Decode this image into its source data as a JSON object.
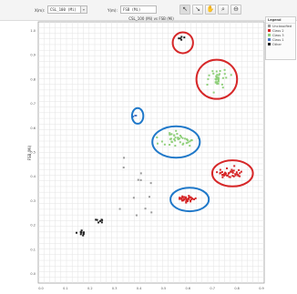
{
  "toolbar": {
    "x_label": "X(m):",
    "x_value": "CSL_100 (Mi)",
    "y_label": "Y(m):",
    "y_value": "FSB (Mi)",
    "tools": [
      {
        "name": "select-tool",
        "glyph": "↖"
      },
      {
        "name": "lasso-tool",
        "glyph": "↘"
      },
      {
        "name": "pan-tool",
        "glyph": "✋"
      },
      {
        "name": "zoom-in-tool",
        "glyph": "⌕"
      },
      {
        "name": "zoom-out-tool",
        "glyph": "⊖"
      }
    ]
  },
  "legend": {
    "title": "Legend",
    "items": [
      {
        "label": "Unclassified",
        "color": "#9a9a9a"
      },
      {
        "label": "Class 2",
        "color": "#d62728"
      },
      {
        "label": "Class 3",
        "color": "#8fcf7a"
      },
      {
        "label": "Class 1",
        "color": "#4e79c7"
      },
      {
        "label": "Other",
        "color": "#222222"
      }
    ]
  },
  "chart_data": {
    "type": "scatter",
    "title": "CSL_100 (Mi) vs FSB (Mi)",
    "xlabel": "",
    "ylabel": "FSB (Mi)",
    "xlim": [
      0,
      1
    ],
    "ylim": [
      0,
      1
    ],
    "x_ticks": [
      "0.0",
      "0.1",
      "0.2",
      "0.3",
      "0.4",
      "0.5",
      "0.6",
      "0.7",
      "0.8",
      "0.9"
    ],
    "y_ticks": [
      "0.0",
      "0.1",
      "0.2",
      "0.3",
      "0.4",
      "0.5",
      "0.6",
      "0.7",
      "0.8",
      "0.9",
      "1.0"
    ],
    "grid": true,
    "legend_position": "right",
    "clusters": [
      {
        "series": "Class 2",
        "color": "#d62728",
        "center": [
          0.85,
          0.42
        ],
        "spread": [
          0.05,
          0.018
        ],
        "count": 42
      },
      {
        "series": "Class 2",
        "color": "#d62728",
        "center": [
          0.66,
          0.32
        ],
        "spread": [
          0.055,
          0.013
        ],
        "count": 38
      },
      {
        "series": "Class 3",
        "color": "#8fcf7a",
        "center": [
          0.79,
          0.78
        ],
        "spread": [
          0.045,
          0.035
        ],
        "count": 34
      },
      {
        "series": "Class 3",
        "color": "#8fcf7a",
        "center": [
          0.62,
          0.55
        ],
        "spread": [
          0.07,
          0.03
        ],
        "count": 40
      },
      {
        "series": "Class 1",
        "color": "#4e79c7",
        "center": [
          0.43,
          0.64
        ],
        "spread": [
          0.01,
          0.008
        ],
        "count": 3
      },
      {
        "series": "Other",
        "color": "#222222",
        "center": [
          0.63,
          0.93
        ],
        "spread": [
          0.02,
          0.012
        ],
        "count": 5
      },
      {
        "series": "Other",
        "color": "#222222",
        "center": [
          0.19,
          0.19
        ],
        "spread": [
          0.02,
          0.01
        ],
        "count": 9
      },
      {
        "series": "Other",
        "color": "#222222",
        "center": [
          0.27,
          0.24
        ],
        "spread": [
          0.02,
          0.012
        ],
        "count": 7
      },
      {
        "series": "Unclassified",
        "color": "#9a9a9a",
        "center": [
          0.45,
          0.34
        ],
        "spread": [
          0.08,
          0.12
        ],
        "count": 12
      }
    ],
    "highlight_ellipses": [
      {
        "color": "#d62728",
        "center": [
          0.64,
          0.92
        ],
        "radii": [
          0.045,
          0.04
        ]
      },
      {
        "color": "#d62728",
        "center": [
          0.79,
          0.78
        ],
        "radii": [
          0.09,
          0.075
        ]
      },
      {
        "color": "#1f78c9",
        "center": [
          0.44,
          0.64
        ],
        "radii": [
          0.025,
          0.03
        ]
      },
      {
        "color": "#1f78c9",
        "center": [
          0.61,
          0.54
        ],
        "radii": [
          0.105,
          0.06
        ]
      },
      {
        "color": "#d62728",
        "center": [
          0.86,
          0.42
        ],
        "radii": [
          0.09,
          0.05
        ]
      },
      {
        "color": "#1f78c9",
        "center": [
          0.67,
          0.32
        ],
        "radii": [
          0.085,
          0.045
        ]
      }
    ]
  }
}
